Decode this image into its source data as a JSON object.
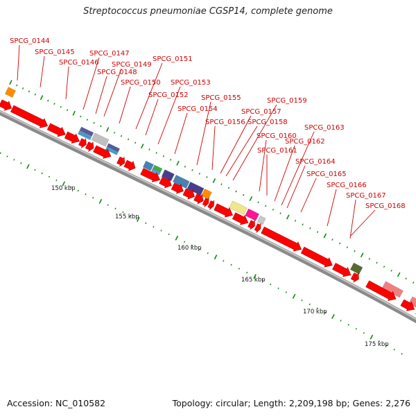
{
  "title": "Streptococcus pneumoniae CGSP14, complete genome",
  "footer": {
    "accession": "Accession: NC_010582",
    "stats": "Topology: circular; Length: 2,209,198 bp; Genes: 2,276"
  },
  "colors": {
    "cds": "#ff0000",
    "backbone": "#888888",
    "label": "#cc0000",
    "tick": "#0a8a0a"
  },
  "genes": [
    "SPCG_0144",
    "SPCG_0145",
    "SPCG_0146",
    "SPCG_0147",
    "SPCG_0148",
    "SPCG_0149",
    "SPCG_0150",
    "SPCG_0151",
    "SPCG_0152",
    "SPCG_0153",
    "SPCG_0154",
    "SPCG_0155",
    "SPCG_0156",
    "SPCG_0157",
    "SPCG_0158",
    "SPCG_0159",
    "SPCG_0160",
    "SPCG_0161",
    "SPCG_0162",
    "SPCG_0163",
    "SPCG_0164",
    "SPCG_0165",
    "SPCG_0166",
    "SPCG_0167",
    "SPCG_0168"
  ],
  "scale_labels": [
    "150 kbp",
    "155 kbp",
    "160 kbp",
    "165 kbp",
    "170 kbp",
    "175 kbp"
  ]
}
